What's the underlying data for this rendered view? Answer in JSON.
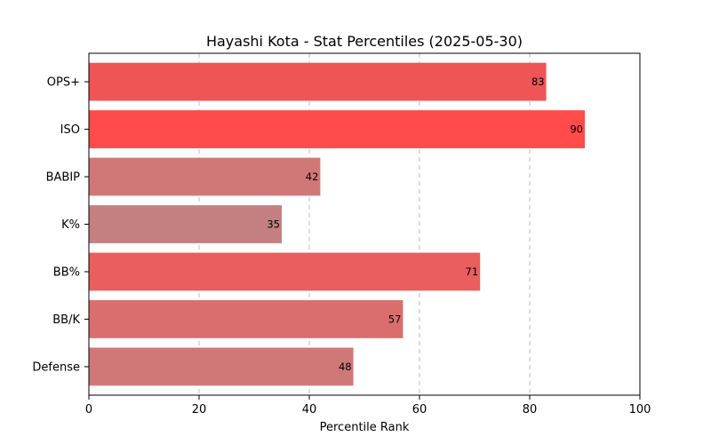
{
  "chart_data": {
    "type": "bar",
    "orientation": "horizontal",
    "title": "Hayashi Kota - Stat Percentiles (2025-05-30)",
    "xlabel": "Percentile Rank",
    "ylabel": "",
    "xlim": [
      0,
      100
    ],
    "xticks": [
      0,
      20,
      40,
      60,
      80,
      100
    ],
    "grid": "x-dashed",
    "categories": [
      "OPS+",
      "ISO",
      "BABIP",
      "K%",
      "BB%",
      "BB/K",
      "Defense"
    ],
    "values": [
      83,
      90,
      42,
      35,
      71,
      57,
      48
    ],
    "colors": [
      "#f05555",
      "#ff4b4b",
      "#d07878",
      "#c48080",
      "#ea5e5e",
      "#da6e6e",
      "#d07878"
    ]
  }
}
